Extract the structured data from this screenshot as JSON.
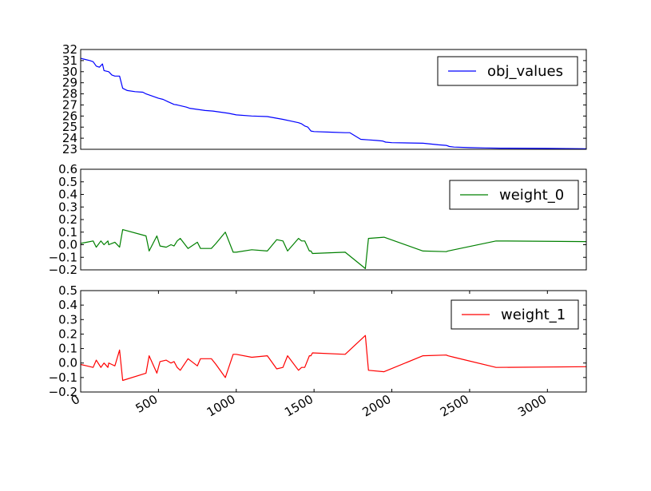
{
  "chart_data": [
    {
      "type": "line",
      "xlim": [
        0,
        3250
      ],
      "ylim": [
        23,
        32
      ],
      "yticks": [
        23,
        24,
        25,
        26,
        27,
        28,
        29,
        30,
        31,
        32
      ],
      "xticks_visible": false,
      "grid": false,
      "legend_position": "top-right",
      "series": [
        {
          "name": "obj_values",
          "color": "#0000ff",
          "x": [
            0,
            30,
            60,
            80,
            100,
            120,
            140,
            150,
            180,
            200,
            220,
            250,
            270,
            300,
            350,
            400,
            420,
            460,
            500,
            530,
            560,
            600,
            620,
            680,
            700,
            800,
            850,
            900,
            950,
            1000,
            1100,
            1200,
            1300,
            1350,
            1400,
            1420,
            1440,
            1460,
            1480,
            1500,
            1600,
            1700,
            1730,
            1800,
            1850,
            1900,
            1940,
            1960,
            2000,
            2200,
            2300,
            2350,
            2370,
            2400,
            2500,
            2600,
            2700,
            3000,
            3250
          ],
          "y": [
            31.2,
            31.1,
            31.0,
            30.9,
            30.5,
            30.4,
            30.7,
            30.1,
            30.0,
            29.7,
            29.6,
            29.6,
            28.5,
            28.3,
            28.2,
            28.15,
            28.0,
            27.8,
            27.6,
            27.5,
            27.3,
            27.05,
            27.0,
            26.8,
            26.7,
            26.5,
            26.45,
            26.35,
            26.25,
            26.1,
            26.0,
            25.95,
            25.7,
            25.55,
            25.4,
            25.3,
            25.1,
            25.0,
            24.65,
            24.6,
            24.55,
            24.5,
            24.5,
            23.9,
            23.85,
            23.8,
            23.75,
            23.65,
            23.6,
            23.55,
            23.4,
            23.35,
            23.25,
            23.2,
            23.15,
            23.12,
            23.1,
            23.08,
            23.05
          ]
        }
      ]
    },
    {
      "type": "line",
      "xlim": [
        0,
        3250
      ],
      "ylim": [
        -0.2,
        0.6
      ],
      "yticks": [
        -0.2,
        -0.1,
        0.0,
        0.1,
        0.2,
        0.3,
        0.4,
        0.5,
        0.6
      ],
      "ytick_labels": [
        "−0.2",
        "−0.1",
        "0.0",
        "0.1",
        "0.2",
        "0.3",
        "0.4",
        "0.5",
        "0.6"
      ],
      "xticks_visible": false,
      "grid": false,
      "legend_position": "top-right",
      "series": [
        {
          "name": "weight_0",
          "color": "#008000",
          "x": [
            0,
            40,
            80,
            100,
            130,
            150,
            175,
            180,
            200,
            220,
            250,
            270,
            420,
            440,
            490,
            510,
            550,
            580,
            600,
            620,
            640,
            690,
            750,
            770,
            840,
            870,
            930,
            980,
            1000,
            1100,
            1200,
            1260,
            1300,
            1330,
            1400,
            1420,
            1440,
            1470,
            1480,
            1490,
            1700,
            1830,
            1850,
            1950,
            2200,
            2350,
            2360,
            2400,
            2670,
            3250
          ],
          "y": [
            0.01,
            0.02,
            0.03,
            -0.02,
            0.03,
            0.0,
            0.03,
            0.0,
            0.01,
            0.02,
            -0.02,
            0.12,
            0.07,
            -0.05,
            0.07,
            -0.01,
            -0.02,
            0.0,
            -0.01,
            0.03,
            0.05,
            -0.03,
            0.02,
            -0.03,
            -0.03,
            0.01,
            0.1,
            -0.06,
            -0.06,
            -0.04,
            -0.05,
            0.04,
            0.03,
            -0.05,
            0.05,
            0.03,
            0.03,
            -0.05,
            -0.05,
            -0.07,
            -0.06,
            -0.19,
            0.05,
            0.06,
            -0.05,
            -0.055,
            -0.05,
            -0.04,
            0.03,
            0.025
          ]
        }
      ]
    },
    {
      "type": "line",
      "xlim": [
        0,
        3250
      ],
      "ylim": [
        -0.2,
        0.5
      ],
      "yticks": [
        -0.2,
        -0.1,
        0.0,
        0.1,
        0.2,
        0.3,
        0.4,
        0.5
      ],
      "ytick_labels": [
        "−0.2",
        "−0.1",
        "0.0",
        "0.1",
        "0.2",
        "0.3",
        "0.4",
        "0.5"
      ],
      "xticks": [
        0,
        500,
        1000,
        1500,
        2000,
        2500,
        3000
      ],
      "xtick_labels": [
        "0",
        "500",
        "1000",
        "1500",
        "2000",
        "2500",
        "3000"
      ],
      "grid": false,
      "legend_position": "top-right",
      "series": [
        {
          "name": "weight_1",
          "color": "#ff0000",
          "x": [
            0,
            40,
            80,
            100,
            130,
            150,
            175,
            180,
            200,
            220,
            250,
            270,
            420,
            440,
            490,
            510,
            550,
            580,
            600,
            620,
            640,
            690,
            750,
            770,
            840,
            870,
            930,
            980,
            1000,
            1100,
            1200,
            1260,
            1300,
            1330,
            1400,
            1420,
            1440,
            1470,
            1480,
            1490,
            1700,
            1830,
            1850,
            1950,
            2200,
            2350,
            2360,
            2400,
            2670,
            3250
          ],
          "y": [
            -0.01,
            -0.02,
            -0.03,
            0.02,
            -0.03,
            0.0,
            -0.03,
            0.0,
            -0.01,
            -0.02,
            0.09,
            -0.12,
            -0.07,
            0.05,
            -0.07,
            0.01,
            0.02,
            0.0,
            0.01,
            -0.03,
            -0.05,
            0.03,
            -0.02,
            0.03,
            0.03,
            -0.01,
            -0.1,
            0.06,
            0.06,
            0.04,
            0.05,
            -0.04,
            -0.03,
            0.05,
            -0.05,
            -0.03,
            -0.03,
            0.05,
            0.05,
            0.07,
            0.06,
            0.19,
            -0.05,
            -0.06,
            0.05,
            0.055,
            0.05,
            0.04,
            -0.03,
            -0.025
          ]
        }
      ]
    }
  ]
}
